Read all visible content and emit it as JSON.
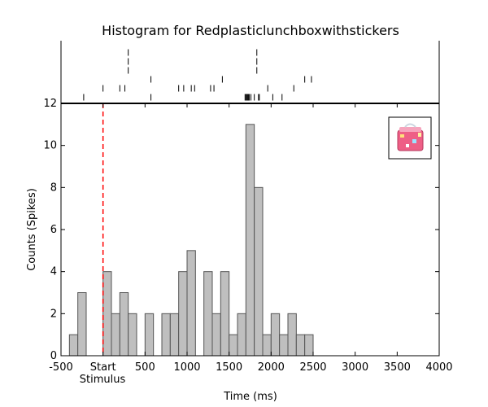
{
  "chart_data": {
    "type": "histogram",
    "title": "Histogram for Redplasticlunchboxwithstickers",
    "xlabel": "Time (ms)",
    "ylabel": "Counts (Spikes)",
    "xlim": [
      -500,
      4000
    ],
    "ylim": [
      0,
      12
    ],
    "grid": false,
    "bin_width": 100,
    "bins_start": [
      -400,
      -300,
      -200,
      -100,
      0,
      100,
      200,
      300,
      400,
      500,
      600,
      700,
      800,
      900,
      1000,
      1100,
      1200,
      1300,
      1400,
      1500,
      1600,
      1700,
      1800,
      1900,
      2000,
      2100,
      2200,
      2300,
      2400
    ],
    "counts": [
      1,
      3,
      0,
      0,
      4,
      2,
      3,
      2,
      0,
      2,
      0,
      2,
      2,
      4,
      5,
      0,
      4,
      2,
      4,
      1,
      2,
      11,
      8,
      1,
      2,
      1,
      2,
      1,
      1
    ],
    "x_ticks": [
      {
        "value": -500,
        "label": "-500"
      },
      {
        "value": 0,
        "label": "Start"
      },
      {
        "value": 500,
        "label": "500"
      },
      {
        "value": 1000,
        "label": "1000"
      },
      {
        "value": 1500,
        "label": "1500"
      },
      {
        "value": 2000,
        "label": "2000"
      },
      {
        "value": 2500,
        "label": "2500"
      },
      {
        "value": 3000,
        "label": "3000"
      },
      {
        "value": 3500,
        "label": "3500"
      },
      {
        "value": 4000,
        "label": "4000"
      }
    ],
    "y_ticks": [
      0,
      2,
      4,
      6,
      8,
      10,
      12
    ],
    "stimulus_line": {
      "x": 0,
      "label": "Stimulus",
      "color": "#ff0000"
    },
    "raster": {
      "trials": [
        [
          -230,
          570,
          1690,
          1700,
          1710,
          1720,
          1730,
          1740,
          1760,
          1800,
          1850,
          1860,
          2020,
          2130
        ],
        [
          0,
          200,
          260,
          900,
          960,
          1050,
          1090,
          1280,
          1320,
          1960,
          2270
        ],
        [
          570,
          1420,
          2400,
          2480
        ],
        [
          300,
          1830
        ],
        [
          300,
          1830
        ],
        [
          300,
          1830
        ]
      ]
    },
    "colors": {
      "bar_fill": "#bfbfbf",
      "bar_edge": "#555555",
      "stimulus": "#ff0000"
    },
    "thumbnail": {
      "position": "top-right",
      "depicts": "red plastic lunchbox with stickers"
    }
  }
}
